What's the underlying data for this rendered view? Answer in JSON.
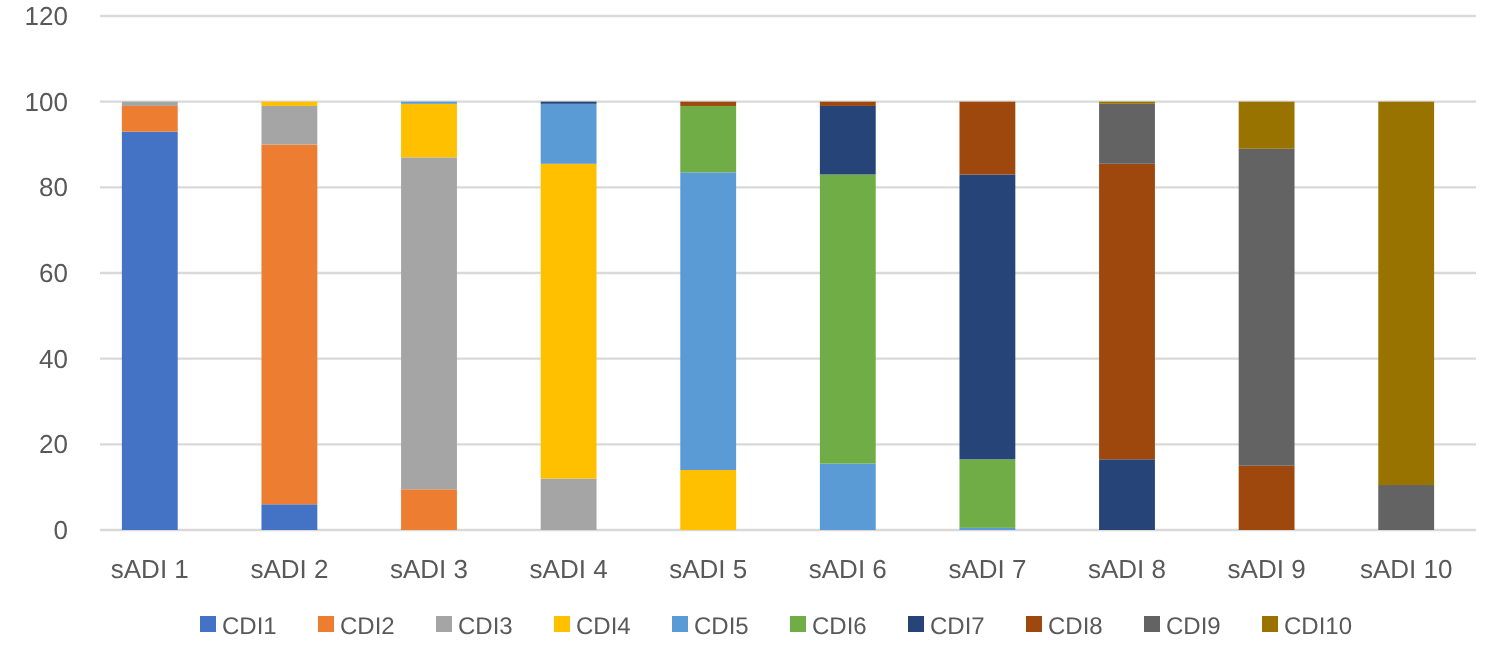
{
  "chart_data": {
    "type": "bar",
    "stacked": true,
    "categories": [
      "sADI 1",
      "sADI 2",
      "sADI 3",
      "sADI 4",
      "sADI 5",
      "sADI 6",
      "sADI 7",
      "sADI 8",
      "sADI 9",
      "sADI 10"
    ],
    "ylim": [
      0,
      120
    ],
    "yticks": [
      0,
      20,
      40,
      60,
      80,
      100,
      120
    ],
    "grid": "y",
    "legend": "bottom",
    "series": [
      {
        "name": "CDI1",
        "color": "#4472c4",
        "values": [
          93,
          6,
          0,
          0,
          0,
          0,
          0,
          0,
          0,
          0
        ]
      },
      {
        "name": "CDI2",
        "color": "#ed7d31",
        "values": [
          6,
          84,
          9.5,
          0,
          0,
          0,
          0,
          0,
          0,
          0
        ]
      },
      {
        "name": "CDI3",
        "color": "#a5a5a5",
        "values": [
          1,
          9,
          77.5,
          12,
          0,
          0,
          0,
          0,
          0,
          0
        ]
      },
      {
        "name": "CDI4",
        "color": "#ffc000",
        "values": [
          0,
          1,
          12.5,
          73.5,
          14,
          0,
          0,
          0,
          0,
          0
        ]
      },
      {
        "name": "CDI5",
        "color": "#5b9bd5",
        "values": [
          0,
          0,
          0.5,
          14,
          69.5,
          15.5,
          0.5,
          0,
          0,
          0
        ]
      },
      {
        "name": "CDI6",
        "color": "#70ad47",
        "values": [
          0,
          0,
          0,
          0,
          15.5,
          67.5,
          16,
          0,
          0,
          0
        ]
      },
      {
        "name": "CDI7",
        "color": "#264478",
        "values": [
          0,
          0,
          0,
          0.5,
          0,
          16,
          66.5,
          16.5,
          0,
          0
        ]
      },
      {
        "name": "CDI8",
        "color": "#9e480e",
        "values": [
          0,
          0,
          0,
          0,
          1,
          1,
          17,
          69,
          15,
          0
        ]
      },
      {
        "name": "CDI9",
        "color": "#636363",
        "values": [
          0,
          0,
          0,
          0,
          0,
          0,
          0,
          14,
          74,
          10.5
        ]
      },
      {
        "name": "CDI10",
        "color": "#997300",
        "values": [
          0,
          0,
          0,
          0,
          0,
          0,
          0,
          0.5,
          11,
          89.5
        ]
      }
    ]
  }
}
